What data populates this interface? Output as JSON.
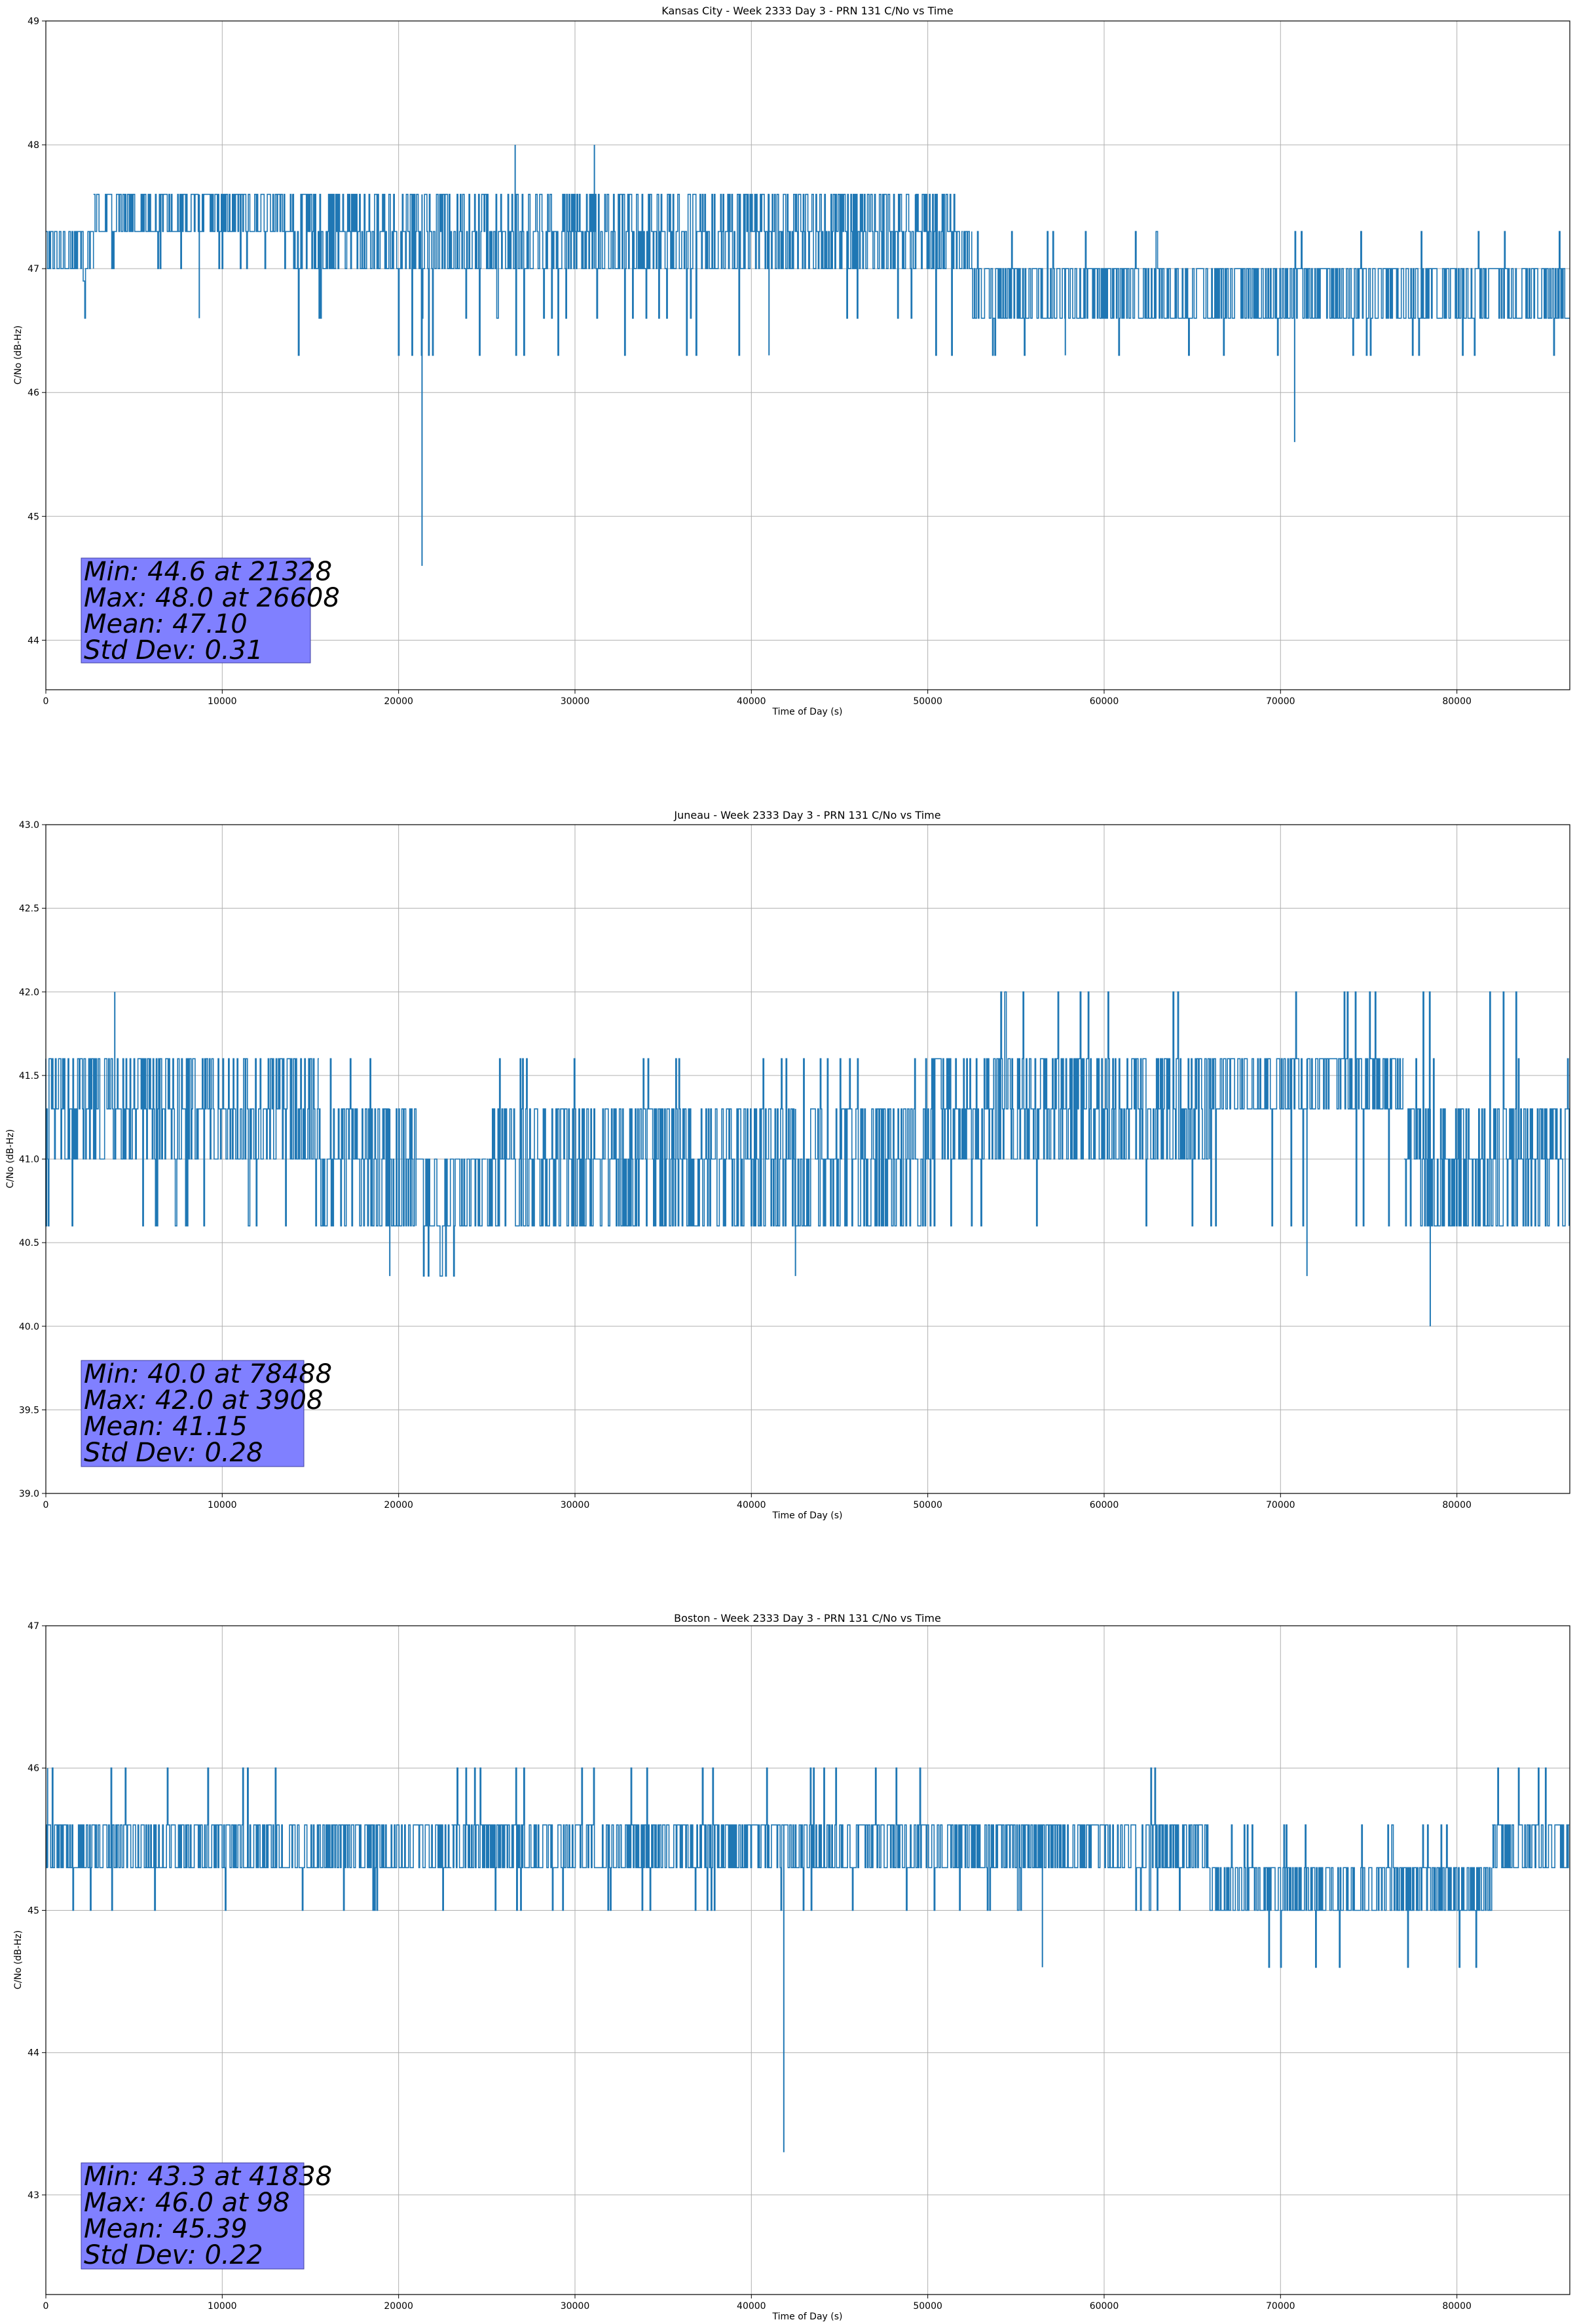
{
  "chart_data": [
    {
      "type": "line",
      "title": "Kansas City - Week 2333 Day 3 - PRN 131 C/No vs Time",
      "xlabel": "Time of Day (s)",
      "ylabel": "C/No (dB-Hz)",
      "xlim": [
        0,
        86400
      ],
      "ylim": [
        43.6,
        49.0
      ],
      "xticks": [
        0,
        10000,
        20000,
        30000,
        40000,
        50000,
        60000,
        70000,
        80000
      ],
      "yticks": [
        44,
        45,
        46,
        47,
        48,
        49
      ],
      "ytick_labels": [
        "44",
        "45",
        "46",
        "47",
        "48",
        "49"
      ],
      "grid": true,
      "series_color": "#1f77b4",
      "series": [
        {
          "name": "C/No",
          "segments": [
            {
              "x": [
                0,
                2700
              ],
              "levels": [
                47.0,
                47.3
              ],
              "dips": [
                46.6,
                46.9
              ]
            },
            {
              "x": [
                2700,
                14000
              ],
              "levels": [
                47.3,
                47.6
              ],
              "dips": [
                47.0
              ]
            },
            {
              "x": [
                14000,
                52000
              ],
              "levels": [
                47.0,
                47.3,
                47.6
              ],
              "dips": [
                46.6,
                46.3
              ]
            },
            {
              "x": [
                52000,
                52500
              ],
              "levels": [
                47.0,
                47.3
              ],
              "dips": [
                46.6
              ]
            },
            {
              "x": [
                52500,
                86400
              ],
              "levels": [
                46.6,
                47.0
              ],
              "dips": [
                46.3
              ],
              "ups": [
                47.3
              ]
            }
          ],
          "spikes": [
            {
              "x": 21328,
              "min": 44.6
            },
            {
              "x": 26608,
              "max": 48.0
            },
            {
              "x": 31100,
              "max": 48.0
            },
            {
              "x": 41000,
              "min": 46.3
            },
            {
              "x": 57800,
              "min": 46.3
            },
            {
              "x": 70800,
              "min": 45.6
            },
            {
              "x": 8700,
              "min": 46.6
            },
            {
              "x": 49300,
              "max": 47.6
            }
          ]
        }
      ],
      "stats": {
        "lines": [
          "Min: 44.6 at 21328",
          "Max: 48.0 at 26608",
          "Mean: 47.10",
          "Std Dev: 0.31"
        ],
        "box_color": "#8080ff",
        "placement": "bottom-left"
      }
    },
    {
      "type": "line",
      "title": "Juneau - Week 2333 Day 3 - PRN 131 C/No vs Time",
      "xlabel": "Time of Day (s)",
      "ylabel": "C/No (dB-Hz)",
      "xlim": [
        0,
        86400
      ],
      "ylim": [
        39.0,
        43.0
      ],
      "xticks": [
        0,
        10000,
        20000,
        30000,
        40000,
        50000,
        60000,
        70000,
        80000
      ],
      "yticks": [
        39.0,
        39.5,
        40.0,
        40.5,
        41.0,
        41.5,
        42.0,
        42.5,
        43.0
      ],
      "ytick_labels": [
        "39.0",
        "39.5",
        "40.0",
        "40.5",
        "41.0",
        "41.5",
        "42.0",
        "42.5",
        "43.0"
      ],
      "grid": true,
      "series_color": "#1f77b4",
      "series": [
        {
          "name": "C/No",
          "segments": [
            {
              "x": [
                0,
                15500
              ],
              "levels": [
                41.0,
                41.3,
                41.6
              ],
              "dips": [
                40.6
              ]
            },
            {
              "x": [
                15500,
                21000
              ],
              "levels": [
                40.6,
                41.0,
                41.3
              ],
              "ups": [
                41.6
              ]
            },
            {
              "x": [
                21000,
                25000
              ],
              "levels": [
                40.6,
                41.0
              ],
              "dips": [
                40.3
              ]
            },
            {
              "x": [
                25000,
                50000
              ],
              "levels": [
                40.6,
                41.0,
                41.3
              ],
              "ups": [
                41.6
              ]
            },
            {
              "x": [
                50000,
                66000
              ],
              "levels": [
                41.0,
                41.3,
                41.6
              ],
              "dips": [
                40.6
              ],
              "ups": [
                42.0
              ]
            },
            {
              "x": [
                66000,
                77000
              ],
              "levels": [
                41.3,
                41.6
              ],
              "ups": [
                42.0
              ],
              "dips": [
                40.6
              ]
            },
            {
              "x": [
                77000,
                86400
              ],
              "levels": [
                40.6,
                41.0,
                41.3
              ],
              "ups": [
                41.6,
                42.0
              ]
            }
          ],
          "spikes": [
            {
              "x": 78488,
              "min": 40.0
            },
            {
              "x": 3908,
              "max": 42.0
            },
            {
              "x": 71500,
              "min": 40.3
            },
            {
              "x": 42500,
              "min": 40.3
            },
            {
              "x": 19500,
              "min": 40.3
            }
          ]
        }
      ],
      "stats": {
        "lines": [
          "Min: 40.0 at 78488",
          "Max: 42.0 at 3908",
          "Mean: 41.15",
          "Std Dev: 0.28"
        ],
        "box_color": "#8080ff",
        "placement": "bottom-left"
      }
    },
    {
      "type": "line",
      "title": "Boston - Week 2333 Day 3 - PRN 131 C/No vs Time",
      "xlabel": "Time of Day (s)",
      "ylabel": "C/No (dB-Hz)",
      "xlim": [
        0,
        86400
      ],
      "ylim": [
        42.3,
        47.0
      ],
      "xticks": [
        0,
        10000,
        20000,
        30000,
        40000,
        50000,
        60000,
        70000,
        80000
      ],
      "yticks": [
        43,
        44,
        45,
        46,
        47
      ],
      "ytick_labels": [
        "43",
        "44",
        "45",
        "46",
        "47"
      ],
      "grid": true,
      "series_color": "#1f77b4",
      "series": [
        {
          "name": "C/No",
          "segments": [
            {
              "x": [
                0,
                23000
              ],
              "levels": [
                45.3,
                45.6
              ],
              "ups": [
                46.0
              ],
              "dips": [
                45.0
              ]
            },
            {
              "x": [
                23000,
                41000
              ],
              "levels": [
                45.3,
                45.6
              ],
              "ups": [
                46.0
              ],
              "dips": [
                45.0
              ]
            },
            {
              "x": [
                41000,
                66000
              ],
              "levels": [
                45.3,
                45.6
              ],
              "dips": [
                45.0
              ],
              "ups": [
                46.0
              ]
            },
            {
              "x": [
                66000,
                82000
              ],
              "levels": [
                45.0,
                45.3
              ],
              "dips": [
                44.6
              ],
              "ups": [
                45.6
              ]
            },
            {
              "x": [
                82000,
                86400
              ],
              "levels": [
                45.3,
                45.6
              ],
              "ups": [
                46.0
              ]
            }
          ],
          "spikes": [
            {
              "x": 41838,
              "min": 43.3
            },
            {
              "x": 98,
              "max": 46.0
            },
            {
              "x": 56500,
              "min": 44.6
            }
          ]
        }
      ],
      "stats": {
        "lines": [
          "Min: 43.3 at 41838",
          "Max: 46.0 at 98",
          "Mean: 45.39",
          "Std Dev: 0.22"
        ],
        "box_color": "#8080ff",
        "placement": "bottom-left"
      }
    }
  ]
}
